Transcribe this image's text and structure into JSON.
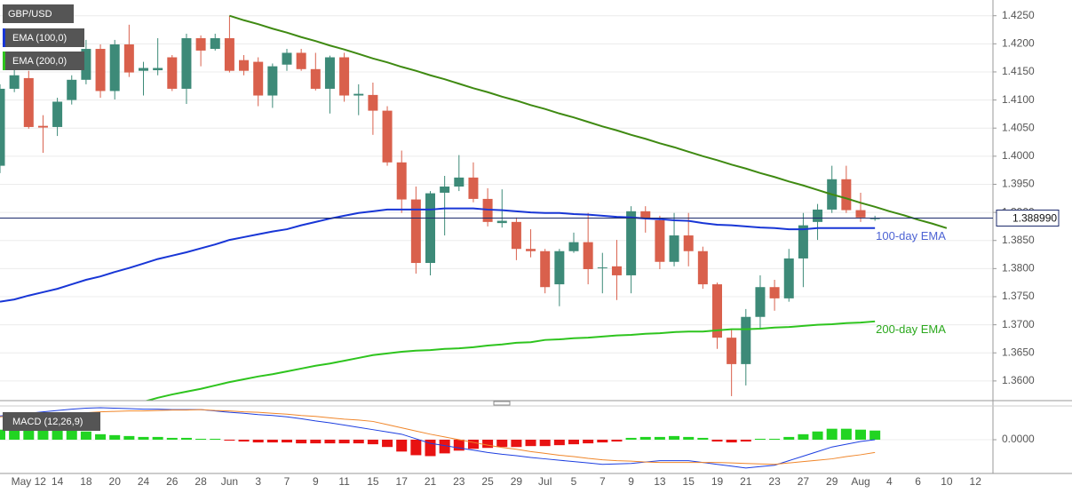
{
  "chart_data": [
    {
      "type": "candlestick",
      "categories": [
        null,
        null,
        "May 12",
        null,
        "14",
        null,
        "18",
        null,
        "20",
        null,
        "24",
        null,
        "26",
        null,
        "28",
        null,
        "Jun",
        null,
        "3",
        null,
        "7",
        null,
        "9",
        null,
        "11",
        null,
        "15",
        null,
        "17",
        null,
        "21",
        null,
        "23",
        null,
        "25",
        null,
        "29",
        null,
        "Jul",
        null,
        "5",
        null,
        "7",
        null,
        "9",
        null,
        "13",
        null,
        "15",
        null,
        "19",
        null,
        "21",
        null,
        "23",
        null,
        "27",
        null,
        "29",
        null,
        "Aug",
        null,
        "4",
        null,
        "6",
        null,
        "10",
        null,
        "12"
      ],
      "ylim": [
        1.3565,
        1.4278
      ],
      "yticks": [
        {
          "value": 1.36,
          "label": "1.3600"
        },
        {
          "value": 1.365,
          "label": "1.3650"
        },
        {
          "value": 1.37,
          "label": "1.3700"
        },
        {
          "value": 1.375,
          "label": "1.3750"
        },
        {
          "value": 1.38,
          "label": "1.3800"
        },
        {
          "value": 1.385,
          "label": "1.3850"
        },
        {
          "value": 1.39,
          "label": "1.3900"
        },
        {
          "value": 1.395,
          "label": "1.3950"
        },
        {
          "value": 1.4,
          "label": "1.4000"
        },
        {
          "value": 1.405,
          "label": "1.4050"
        },
        {
          "value": 1.41,
          "label": "1.4100"
        },
        {
          "value": 1.415,
          "label": "1.4150"
        },
        {
          "value": 1.42,
          "label": "1.4200"
        },
        {
          "value": 1.425,
          "label": "1.4250"
        }
      ],
      "grid": true,
      "last_price": {
        "value": 1.38899,
        "label": "1.388990",
        "color": "#1b2a6b"
      },
      "series": [
        {
          "name": "GBP/USD",
          "type": "candlestick",
          "up_color": "#3d8a78",
          "down_color": "#d9604c",
          "open": [
            1.3983,
            1.412,
            1.4139,
            1.4054,
            1.4052,
            1.41,
            1.4136,
            1.4191,
            1.4116,
            1.4199,
            1.4152,
            1.4153,
            1.4176,
            1.412,
            1.421,
            1.4191,
            1.421,
            1.4171,
            1.4168,
            1.4108,
            1.4163,
            1.4184,
            1.4155,
            1.412,
            1.4176,
            1.4108,
            1.4109,
            1.4081,
            1.3989,
            1.3923,
            1.381,
            1.3935,
            1.3946,
            1.3962,
            1.3924,
            1.3881,
            1.3883,
            1.3835,
            1.3831,
            1.3772,
            1.3831,
            1.3847,
            1.3801,
            1.3804,
            1.3788,
            1.3902,
            1.3886,
            1.3812,
            1.3859,
            1.3831,
            1.3772,
            1.3677,
            1.363,
            1.3714,
            1.3767,
            1.3747,
            1.3818,
            1.3883,
            1.3905,
            1.3959,
            1.3904,
            1.3888,
            null,
            null,
            null,
            null,
            null,
            null,
            null
          ],
          "high": [
            1.4128,
            1.416,
            1.4152,
            1.4073,
            1.4104,
            1.4144,
            1.4207,
            1.4199,
            1.4207,
            1.4234,
            1.4168,
            1.421,
            1.418,
            1.4218,
            1.4215,
            1.4218,
            1.425,
            1.418,
            1.4176,
            1.4165,
            1.4191,
            1.4191,
            1.4184,
            1.4179,
            1.4184,
            1.4128,
            1.4131,
            1.4089,
            1.401,
            1.3946,
            1.3938,
            1.3965,
            1.4002,
            1.3989,
            1.3943,
            1.3941,
            1.3891,
            1.387,
            1.3835,
            1.3835,
            1.3864,
            1.3899,
            1.3828,
            1.3851,
            1.3911,
            1.3911,
            1.3894,
            1.3899,
            1.3899,
            1.3839,
            1.3775,
            1.3693,
            1.3728,
            1.3788,
            1.378,
            1.3835,
            1.3899,
            1.3915,
            1.3983,
            1.3983,
            1.3935,
            1.3894,
            null,
            null,
            null,
            null,
            null,
            null,
            null
          ],
          "low": [
            1.397,
            1.4114,
            1.4049,
            1.4006,
            1.4036,
            1.4092,
            1.4128,
            1.4104,
            1.4101,
            1.4141,
            1.4108,
            1.4144,
            1.4116,
            1.4093,
            1.416,
            1.4188,
            1.4149,
            1.4144,
            1.4089,
            1.4086,
            1.4152,
            1.4152,
            1.4117,
            1.4076,
            1.4097,
            1.4073,
            1.4038,
            1.3983,
            1.3899,
            1.3791,
            1.3788,
            1.3859,
            1.3938,
            1.3918,
            1.3875,
            1.3873,
            1.3815,
            1.382,
            1.3756,
            1.3733,
            1.3828,
            1.3772,
            1.3756,
            1.3744,
            1.3756,
            1.3864,
            1.3799,
            1.3804,
            1.3804,
            1.3764,
            1.3657,
            1.3573,
            1.3592,
            1.3693,
            1.3725,
            1.3741,
            1.3767,
            1.3851,
            1.3899,
            1.3899,
            1.3883,
            1.3885,
            null,
            null,
            null,
            null,
            null,
            null,
            null
          ],
          "close": [
            1.412,
            1.4144,
            1.4052,
            1.4051,
            1.4097,
            1.4136,
            1.4191,
            1.4116,
            1.4199,
            1.4149,
            1.4157,
            1.4157,
            1.412,
            1.421,
            1.4188,
            1.421,
            1.4152,
            1.4152,
            1.4108,
            1.416,
            1.4184,
            1.4155,
            1.412,
            1.4176,
            1.4108,
            1.4111,
            1.4081,
            1.3989,
            1.3923,
            1.381,
            1.3934,
            1.3946,
            1.3962,
            1.3924,
            1.3883,
            1.3885,
            1.3835,
            1.3831,
            1.3767,
            1.3831,
            1.3847,
            1.3799,
            1.3802,
            1.3788,
            1.3902,
            1.3889,
            1.3812,
            1.3859,
            1.3831,
            1.3772,
            1.3677,
            1.363,
            1.3714,
            1.3767,
            1.3747,
            1.3818,
            1.3877,
            1.3905,
            1.3959,
            1.3904,
            1.3891,
            1.389,
            null,
            null,
            null,
            null,
            null,
            null,
            null
          ]
        },
        {
          "name": "EMA (100,0)",
          "type": "line",
          "color": "#1836d6",
          "label": "100-day EMA",
          "label_color": "#4d63d4",
          "values": [
            1.3741,
            1.3745,
            1.3752,
            1.3758,
            1.3764,
            1.3772,
            1.378,
            1.3786,
            1.3794,
            1.3801,
            1.3809,
            1.3817,
            1.3823,
            1.3829,
            1.3836,
            1.3843,
            1.3851,
            1.3856,
            1.3861,
            1.3866,
            1.387,
            1.3877,
            1.3883,
            1.3889,
            1.3894,
            1.3899,
            1.3902,
            1.3905,
            1.3905,
            1.3905,
            1.3905,
            1.3907,
            1.3907,
            1.3907,
            1.3905,
            1.3904,
            1.3902,
            1.39,
            1.3899,
            1.3899,
            1.3897,
            1.3896,
            1.3894,
            1.3892,
            1.3891,
            1.3889,
            1.3888,
            1.3886,
            1.3885,
            1.3881,
            1.3878,
            1.3877,
            1.3875,
            1.3873,
            1.3872,
            1.387,
            1.387,
            1.3872,
            1.3872,
            1.3872,
            1.3872,
            1.3872,
            null,
            null,
            null,
            null,
            null,
            null,
            null
          ]
        },
        {
          "name": "EMA (200,0)",
          "type": "line",
          "color": "#2ec41e",
          "label": "200-day EMA",
          "label_color": "#2aa81c",
          "values": [
            null,
            null,
            null,
            null,
            null,
            null,
            null,
            null,
            null,
            null,
            1.3563,
            1.357,
            1.3576,
            1.3581,
            1.3586,
            1.3592,
            1.3598,
            1.3603,
            1.3608,
            1.3612,
            1.3617,
            1.3622,
            1.3627,
            1.3631,
            1.3636,
            1.3641,
            1.3646,
            1.3649,
            1.3652,
            1.3654,
            1.3655,
            1.3657,
            1.3658,
            1.366,
            1.3663,
            1.3665,
            1.3668,
            1.3669,
            1.3673,
            1.3674,
            1.3676,
            1.3677,
            1.3679,
            1.3681,
            1.3682,
            1.3684,
            1.3685,
            1.3687,
            1.3688,
            1.3688,
            1.369,
            1.3692,
            1.3692,
            1.3693,
            1.3695,
            1.3696,
            1.3698,
            1.37,
            1.3701,
            1.3703,
            1.3704,
            1.3706,
            null,
            null,
            null,
            null,
            null,
            null,
            null
          ]
        },
        {
          "type": "line",
          "color": "#3f8a12",
          "values": [
            null,
            null,
            null,
            null,
            null,
            null,
            null,
            null,
            null,
            null,
            null,
            null,
            null,
            null,
            null,
            null,
            1.425,
            1.4242,
            1.4235,
            1.4227,
            1.422,
            1.4212,
            1.4205,
            1.4197,
            1.419,
            1.4182,
            1.4174,
            1.4167,
            1.4159,
            1.4152,
            1.4144,
            1.4137,
            1.4129,
            1.4121,
            1.4114,
            1.4106,
            1.4099,
            1.4091,
            1.4084,
            1.4076,
            1.4069,
            1.4061,
            1.4053,
            1.4046,
            1.4038,
            1.4031,
            1.4023,
            1.4016,
            1.4008,
            1.4,
            1.3993,
            1.3985,
            1.3978,
            1.397,
            1.3963,
            1.3955,
            1.3948,
            1.394,
            1.3932,
            1.3925,
            1.3917,
            1.391,
            1.3902,
            1.3895,
            1.3887,
            1.388,
            1.3872,
            null,
            null
          ]
        }
      ]
    },
    {
      "type": "macd",
      "title": "MACD (12,26,9)",
      "ylim": [
        -0.0074,
        0.0072
      ],
      "yticks": [
        {
          "value": 0,
          "label": "0.0000"
        }
      ],
      "histogram": {
        "up_color": "#22d422",
        "down_color": "#e81212",
        "values": [
          0.0022,
          0.0022,
          0.0022,
          0.0022,
          0.0022,
          0.002,
          0.0018,
          0.0012,
          0.001,
          0.0008,
          0.0006,
          0.0006,
          0.0004,
          0.0004,
          0.0002,
          0.0002,
          -0.0002,
          -0.0004,
          -0.0006,
          -0.0006,
          -0.0006,
          -0.0008,
          -0.0008,
          -0.0008,
          -0.0008,
          -0.0008,
          -0.001,
          -0.0016,
          -0.0026,
          -0.0034,
          -0.0036,
          -0.003,
          -0.0024,
          -0.002,
          -0.0018,
          -0.0016,
          -0.0016,
          -0.0014,
          -0.0014,
          -0.0012,
          -0.001,
          -0.0008,
          -0.0006,
          -0.0004,
          0.0004,
          0.0006,
          0.0006,
          0.0008,
          0.0006,
          0.0004,
          -0.0004,
          -0.0006,
          -0.0004,
          0.0002,
          0.0002,
          0.0006,
          0.0012,
          0.0018,
          0.0024,
          0.0024,
          0.0022,
          0.002,
          null,
          null,
          null,
          null,
          null,
          null,
          null
        ]
      },
      "series": [
        {
          "type": "line",
          "color": "#1c3ee0",
          "values": [
            0.0052,
            0.0055,
            0.0058,
            0.0061,
            0.0064,
            0.0067,
            0.0069,
            0.007,
            0.0069,
            0.0068,
            0.0067,
            0.0067,
            0.0066,
            0.0066,
            0.0066,
            0.0063,
            0.006,
            0.0058,
            0.0055,
            0.0053,
            0.005,
            0.0046,
            0.0041,
            0.0037,
            0.0032,
            0.0027,
            0.0022,
            0.0017,
            0.0012,
            0.0002,
            -0.0008,
            -0.0013,
            -0.0018,
            -0.0023,
            -0.0028,
            -0.0032,
            -0.0035,
            -0.0039,
            -0.0042,
            -0.0045,
            -0.0048,
            -0.0051,
            -0.0054,
            -0.0053,
            -0.0052,
            -0.0049,
            -0.0046,
            -0.0046,
            -0.0046,
            -0.005,
            -0.0054,
            -0.0058,
            -0.0062,
            -0.0059,
            -0.0056,
            -0.0046,
            -0.0036,
            -0.0026,
            -0.0016,
            -0.001,
            -0.0004,
            0.0,
            null,
            null,
            null,
            null,
            null,
            null,
            null
          ]
        },
        {
          "type": "line",
          "color": "#f0862a",
          "values": [
            0.005,
            0.0052,
            0.0053,
            0.0055,
            0.0056,
            0.0058,
            0.0059,
            0.0061,
            0.0062,
            0.0063,
            0.0063,
            0.0064,
            0.0065,
            0.0065,
            0.0066,
            0.0064,
            0.0063,
            0.0061,
            0.006,
            0.0058,
            0.0056,
            0.0053,
            0.0051,
            0.0048,
            0.0045,
            0.0043,
            0.004,
            0.0033,
            0.0026,
            0.0019,
            0.0012,
            0.0006,
            0.0,
            -0.0006,
            -0.0012,
            -0.0017,
            -0.0021,
            -0.0026,
            -0.003,
            -0.0034,
            -0.0037,
            -0.0041,
            -0.0044,
            -0.0046,
            -0.0047,
            -0.0049,
            -0.005,
            -0.005,
            -0.005,
            -0.005,
            -0.005,
            -0.0051,
            -0.0052,
            -0.0053,
            -0.0054,
            -0.0051,
            -0.0048,
            -0.0045,
            -0.0042,
            -0.0037,
            -0.0033,
            -0.0028,
            null,
            null,
            null,
            null,
            null,
            null,
            null
          ]
        }
      ]
    }
  ]
}
